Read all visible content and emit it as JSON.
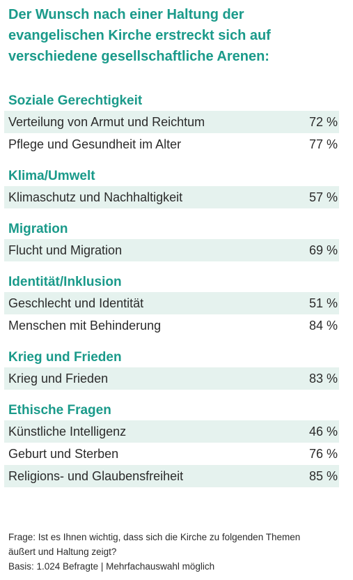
{
  "title": {
    "line1": "Der Wunsch nach einer Haltung der",
    "line2": "evangelischen Kirche erstreckt sich auf",
    "line3": "verschiedene gesellschaftliche Arenen:"
  },
  "colors": {
    "accent": "#1a9a8a",
    "row_shade": "#e5f2ee",
    "text": "#2b2b2b"
  },
  "sections": [
    {
      "heading": "Soziale Gerechtigkeit",
      "rows": [
        {
          "label": "Verteilung von Armut und Reichtum",
          "value": "72 %"
        },
        {
          "label": "Pflege und Gesundheit im Alter",
          "value": "77 %"
        }
      ]
    },
    {
      "heading": "Klima/Umwelt",
      "rows": [
        {
          "label": "Klimaschutz und Nachhaltigkeit",
          "value": "57 %"
        }
      ]
    },
    {
      "heading": "Migration",
      "rows": [
        {
          "label": "Flucht und Migration",
          "value": "69 %"
        }
      ]
    },
    {
      "heading": "Identität/Inklusion",
      "rows": [
        {
          "label": "Geschlecht und Identität",
          "value": "51 %"
        },
        {
          "label": "Menschen mit Behinderung",
          "value": "84 %"
        }
      ]
    },
    {
      "heading": "Krieg und Frieden",
      "rows": [
        {
          "label": "Krieg und Frieden",
          "value": "83 %"
        }
      ]
    },
    {
      "heading": "Ethische Fragen",
      "rows": [
        {
          "label": "Künstliche Intelligenz",
          "value": "46 %"
        },
        {
          "label": "Geburt und Sterben",
          "value": "76 %"
        },
        {
          "label": "Religions- und Glaubensfreiheit",
          "value": "85 %"
        }
      ]
    }
  ],
  "footnote": {
    "line1": "Frage: Ist es Ihnen wichtig, dass sich die Kirche zu folgenden Themen",
    "line2": "äußert und Haltung zeigt?",
    "line3": "Basis: 1.024 Befragte | Mehrfachauswahl möglich"
  }
}
